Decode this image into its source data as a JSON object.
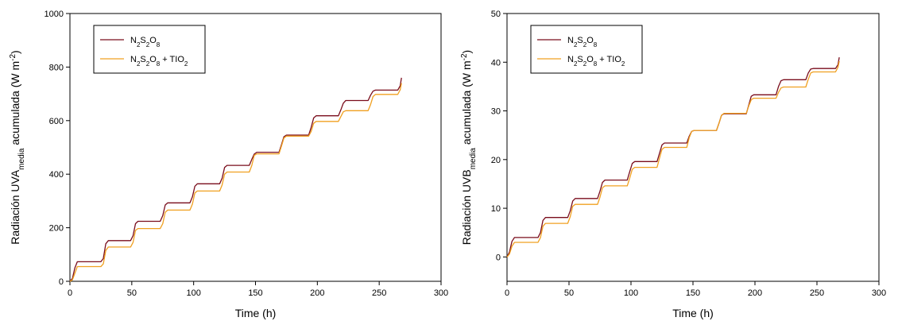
{
  "colors": {
    "series1": "#7a0d1c",
    "series2": "#f0a020"
  },
  "chart_data": [
    {
      "type": "line",
      "xlabel": "Time (h)",
      "ylabel": {
        "main": "Radiación UVA",
        "sub": "media",
        "rest": " acumulada (W m",
        "sup": "-2",
        "end": ")"
      },
      "xlim": [
        0,
        300
      ],
      "ylim": [
        0,
        1000
      ],
      "xticks": [
        0,
        50,
        100,
        150,
        200,
        250,
        300
      ],
      "yticks": [
        0,
        200,
        400,
        600,
        800,
        1000
      ],
      "grid": false,
      "legend_position": "top-left",
      "series": [
        {
          "name": "N2S2O8",
          "name_parts": [
            [
              "N",
              ""
            ],
            [
              "2",
              "sub"
            ],
            [
              "S",
              ""
            ],
            [
              "2",
              "sub"
            ],
            [
              "O",
              ""
            ],
            [
              "8",
              "sub"
            ]
          ],
          "color_key": "series1",
          "points": [
            [
              0,
              0
            ],
            [
              2,
              10
            ],
            [
              4,
              50
            ],
            [
              6,
              73
            ],
            [
              25,
              73
            ],
            [
              27,
              85
            ],
            [
              29,
              140
            ],
            [
              31,
              152
            ],
            [
              49,
              152
            ],
            [
              51,
              170
            ],
            [
              53,
              215
            ],
            [
              55,
              224
            ],
            [
              73,
              224
            ],
            [
              75,
              245
            ],
            [
              77,
              285
            ],
            [
              79,
              293
            ],
            [
              97,
              293
            ],
            [
              99,
              315
            ],
            [
              101,
              355
            ],
            [
              103,
              364
            ],
            [
              121,
              364
            ],
            [
              123,
              385
            ],
            [
              125,
              425
            ],
            [
              127,
              433
            ],
            [
              145,
              433
            ],
            [
              147,
              455
            ],
            [
              149,
              475
            ],
            [
              151,
              482
            ],
            [
              169,
              482
            ],
            [
              171,
              510
            ],
            [
              173,
              540
            ],
            [
              175,
              546
            ],
            [
              193,
              546
            ],
            [
              195,
              575
            ],
            [
              197,
              610
            ],
            [
              199,
              618
            ],
            [
              217,
              618
            ],
            [
              219,
              640
            ],
            [
              221,
              665
            ],
            [
              223,
              675
            ],
            [
              241,
              675
            ],
            [
              243,
              695
            ],
            [
              245,
              710
            ],
            [
              247,
              714
            ],
            [
              265,
              714
            ],
            [
              267,
              730
            ],
            [
              268,
              760
            ]
          ]
        },
        {
          "name": "N2S2O8 + TIO2",
          "name_parts": [
            [
              "N",
              ""
            ],
            [
              "2",
              "sub"
            ],
            [
              "S",
              ""
            ],
            [
              "2",
              "sub"
            ],
            [
              "O",
              ""
            ],
            [
              "8",
              "sub"
            ],
            [
              " + TIO",
              ""
            ],
            [
              "2",
              "sub"
            ]
          ],
          "color_key": "series2",
          "points": [
            [
              0,
              0
            ],
            [
              2,
              5
            ],
            [
              4,
              30
            ],
            [
              6,
              55
            ],
            [
              25,
              55
            ],
            [
              27,
              65
            ],
            [
              29,
              115
            ],
            [
              31,
              128
            ],
            [
              49,
              128
            ],
            [
              51,
              145
            ],
            [
              53,
              190
            ],
            [
              55,
              197
            ],
            [
              73,
              197
            ],
            [
              75,
              215
            ],
            [
              77,
              258
            ],
            [
              79,
              266
            ],
            [
              97,
              266
            ],
            [
              99,
              288
            ],
            [
              101,
              330
            ],
            [
              103,
              337
            ],
            [
              121,
              337
            ],
            [
              123,
              360
            ],
            [
              125,
              400
            ],
            [
              127,
              408
            ],
            [
              145,
              408
            ],
            [
              147,
              432
            ],
            [
              149,
              470
            ],
            [
              151,
              476
            ],
            [
              169,
              476
            ],
            [
              171,
              505
            ],
            [
              173,
              535
            ],
            [
              175,
              542
            ],
            [
              193,
              542
            ],
            [
              195,
              560
            ],
            [
              197,
              590
            ],
            [
              199,
              597
            ],
            [
              217,
              597
            ],
            [
              219,
              615
            ],
            [
              221,
              633
            ],
            [
              223,
              637
            ],
            [
              241,
              637
            ],
            [
              243,
              660
            ],
            [
              245,
              690
            ],
            [
              247,
              698
            ],
            [
              265,
              698
            ],
            [
              267,
              715
            ],
            [
              268,
              740
            ]
          ]
        }
      ]
    },
    {
      "type": "line",
      "xlabel": "Time (h)",
      "ylabel": {
        "main": "Radiación UVB",
        "sub": "media",
        "rest": " acumulada (W m",
        "sup": "-2",
        "end": ")"
      },
      "xlim": [
        0,
        300
      ],
      "ylim": [
        -5,
        50
      ],
      "xticks": [
        0,
        50,
        100,
        150,
        200,
        250,
        300
      ],
      "yticks": [
        0,
        10,
        20,
        30,
        40,
        50
      ],
      "grid": false,
      "legend_position": "top-left",
      "series": [
        {
          "name": "N2S2O8",
          "name_parts": [
            [
              "N",
              ""
            ],
            [
              "2",
              "sub"
            ],
            [
              "S",
              ""
            ],
            [
              "2",
              "sub"
            ],
            [
              "O",
              ""
            ],
            [
              "8",
              "sub"
            ]
          ],
          "color_key": "series1",
          "points": [
            [
              0,
              0
            ],
            [
              2,
              1
            ],
            [
              4,
              3.2
            ],
            [
              6,
              4
            ],
            [
              25,
              4
            ],
            [
              27,
              5
            ],
            [
              29,
              7.5
            ],
            [
              31,
              8.1
            ],
            [
              49,
              8.1
            ],
            [
              51,
              9.5
            ],
            [
              53,
              11.5
            ],
            [
              55,
              12
            ],
            [
              73,
              12
            ],
            [
              75,
              13.5
            ],
            [
              77,
              15.3
            ],
            [
              79,
              15.8
            ],
            [
              97,
              15.8
            ],
            [
              99,
              17.5
            ],
            [
              101,
              19.2
            ],
            [
              103,
              19.6
            ],
            [
              121,
              19.6
            ],
            [
              123,
              21.3
            ],
            [
              125,
              23
            ],
            [
              127,
              23.4
            ],
            [
              145,
              23.4
            ],
            [
              147,
              24.8
            ],
            [
              149,
              25.8
            ],
            [
              151,
              26
            ],
            [
              169,
              26
            ],
            [
              171,
              27.5
            ],
            [
              173,
              29.1
            ],
            [
              175,
              29.4
            ],
            [
              193,
              29.4
            ],
            [
              195,
              31.2
            ],
            [
              197,
              33
            ],
            [
              199,
              33.3
            ],
            [
              217,
              33.3
            ],
            [
              219,
              35
            ],
            [
              221,
              36.2
            ],
            [
              223,
              36.4
            ],
            [
              241,
              36.4
            ],
            [
              243,
              37.8
            ],
            [
              245,
              38.6
            ],
            [
              247,
              38.7
            ],
            [
              265,
              38.7
            ],
            [
              267,
              39.5
            ],
            [
              268,
              41
            ]
          ]
        },
        {
          "name": "N2S2O8 + TIO2",
          "name_parts": [
            [
              "N",
              ""
            ],
            [
              "2",
              "sub"
            ],
            [
              "S",
              ""
            ],
            [
              "2",
              "sub"
            ],
            [
              "O",
              ""
            ],
            [
              "8",
              "sub"
            ],
            [
              " + TIO",
              ""
            ],
            [
              "2",
              "sub"
            ]
          ],
          "color_key": "series2",
          "points": [
            [
              0,
              0
            ],
            [
              2,
              0.6
            ],
            [
              4,
              2.2
            ],
            [
              6,
              3
            ],
            [
              25,
              3
            ],
            [
              27,
              4
            ],
            [
              29,
              6.3
            ],
            [
              31,
              6.9
            ],
            [
              49,
              6.9
            ],
            [
              51,
              8.3
            ],
            [
              53,
              10.4
            ],
            [
              55,
              10.8
            ],
            [
              73,
              10.8
            ],
            [
              75,
              12.3
            ],
            [
              77,
              14.2
            ],
            [
              79,
              14.6
            ],
            [
              97,
              14.6
            ],
            [
              99,
              16.2
            ],
            [
              101,
              18
            ],
            [
              103,
              18.4
            ],
            [
              121,
              18.4
            ],
            [
              123,
              20.3
            ],
            [
              125,
              22.1
            ],
            [
              127,
              22.5
            ],
            [
              145,
              22.5
            ],
            [
              147,
              24.5
            ],
            [
              149,
              25.8
            ],
            [
              151,
              26
            ],
            [
              169,
              26
            ],
            [
              171,
              27.5
            ],
            [
              173,
              29.1
            ],
            [
              175,
              29.5
            ],
            [
              193,
              29.5
            ],
            [
              195,
              31
            ],
            [
              197,
              32.3
            ],
            [
              199,
              32.6
            ],
            [
              217,
              32.6
            ],
            [
              219,
              33.8
            ],
            [
              221,
              34.7
            ],
            [
              223,
              34.9
            ],
            [
              241,
              34.9
            ],
            [
              243,
              36.5
            ],
            [
              245,
              37.8
            ],
            [
              247,
              38
            ],
            [
              265,
              38
            ],
            [
              267,
              39
            ],
            [
              268,
              40.2
            ]
          ]
        }
      ]
    }
  ]
}
